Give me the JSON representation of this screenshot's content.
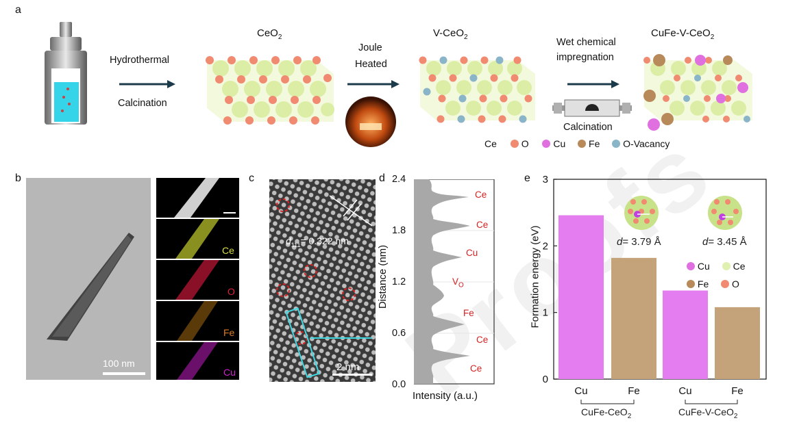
{
  "panel_a": {
    "letter": "a",
    "ceo2_label": "CeO2",
    "vceo2_label": "V-CeO2",
    "cufe_label": "CuFe-V-CeO2",
    "step1_top": "Hydrothermal",
    "step1_bottom": "Calcination",
    "step2_top": "Joule",
    "step2_bottom": "Heated",
    "step3_top": "Wet chemical",
    "step3_mid": "impregnation",
    "step3_bottom": "Calcination",
    "legend": [
      {
        "name": "Ce",
        "color": "#dff0b0"
      },
      {
        "name": "O",
        "color": "#f08a70"
      },
      {
        "name": "Cu",
        "color": "#e070e0"
      },
      {
        "name": "Fe",
        "color": "#b88a5a"
      },
      {
        "name": "O-Vacancy",
        "color": "#8ab4c8"
      }
    ]
  },
  "panel_b": {
    "letter": "b",
    "scale_bar": "100 nm",
    "maps": [
      {
        "label": "",
        "color": "#ffffff"
      },
      {
        "label": "Ce",
        "color": "#d8e040"
      },
      {
        "label": "O",
        "color": "#e0203a"
      },
      {
        "label": "Fe",
        "color": "#e07a20"
      },
      {
        "label": "Cu",
        "color": "#d020d0"
      }
    ]
  },
  "panel_c": {
    "letter": "c",
    "d_spacing_label": "d111= 0.322 nm",
    "scale_bar": "2 nm"
  },
  "panel_d": {
    "letter": "d",
    "ylabel": "Distance (nm)",
    "xlabel": "Intensity (a.u.)",
    "yticks": [
      "2.4",
      "1.8",
      "1.2",
      "0.6",
      "0.0"
    ],
    "peaks": [
      "Ce",
      "Ce",
      "Cu",
      "VO",
      "Fe",
      "Ce",
      "Ce"
    ]
  },
  "panel_e": {
    "letter": "e",
    "ylabel": "Formation energy (eV)",
    "inset_left": "d= 3.79 Å",
    "inset_right": "d= 3.45 Å",
    "legend": [
      {
        "name": "Cu",
        "color": "#e070e0"
      },
      {
        "name": "Ce",
        "color": "#dff0b0"
      },
      {
        "name": "Fe",
        "color": "#b88a5a"
      },
      {
        "name": "O",
        "color": "#f08a70"
      }
    ],
    "group1": "CuFe-CeO2",
    "group2": "CuFe-V-CeO2"
  },
  "watermark": "Proofs",
  "chart_data": {
    "type": "bar",
    "categories": [
      "Cu",
      "Fe",
      "Cu",
      "Fe"
    ],
    "groups": [
      "CuFe-CeO2",
      "CuFe-CeO2",
      "CuFe-V-CeO2",
      "CuFe-V-CeO2"
    ],
    "values": [
      2.46,
      1.82,
      1.33,
      1.08
    ],
    "colors": [
      "#e47ef0",
      "#c4a27a",
      "#e47ef0",
      "#c4a27a"
    ],
    "ylabel": "Formation energy (eV)",
    "ylim": [
      0,
      3
    ],
    "yticks": [
      0,
      1,
      2,
      3
    ]
  }
}
